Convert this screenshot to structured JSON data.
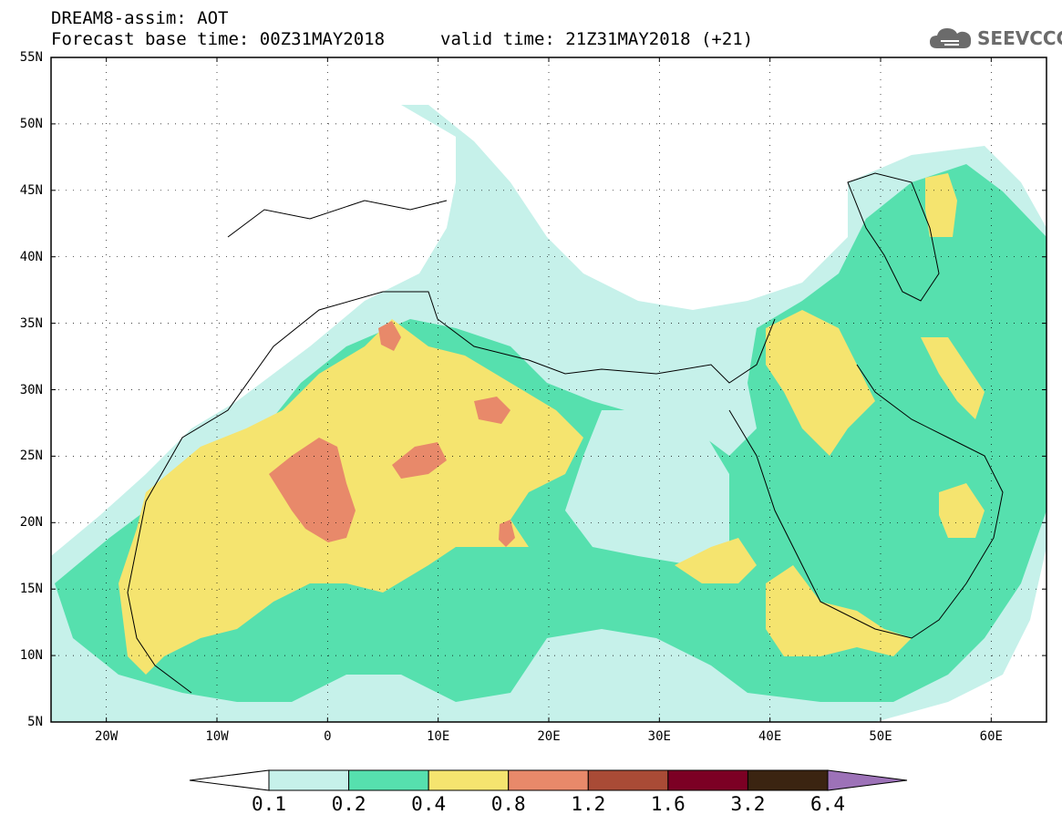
{
  "header": {
    "title": "DREAM8-assim: AOT",
    "base_time": "Forecast base time: 00Z31MAY2018",
    "valid_time": "valid time: 21Z31MAY2018 (+21)"
  },
  "logo": {
    "text": "SEEVCCC",
    "icon": "cloud-icon",
    "color": "#6b6b6b"
  },
  "axes": {
    "lat_labels": [
      "55N",
      "50N",
      "45N",
      "40N",
      "35N",
      "30N",
      "25N",
      "20N",
      "15N",
      "10N",
      "5N"
    ],
    "lon_labels": [
      "20W",
      "10W",
      "0",
      "10E",
      "20E",
      "30E",
      "40E",
      "50E",
      "60E"
    ],
    "lat_range": [
      5,
      55
    ],
    "lon_range": [
      -25,
      65
    ],
    "grid": "dotted"
  },
  "colorbar": {
    "labels": [
      "0.1",
      "0.2",
      "0.4",
      "0.8",
      "1.2",
      "1.6",
      "3.2",
      "6.4"
    ],
    "colors": [
      "#ffffff",
      "#c6f1ea",
      "#56e0ae",
      "#f5e46f",
      "#e8896a",
      "#a94b36",
      "#7c0024",
      "#3b2411",
      "#9d72b8"
    ]
  }
}
